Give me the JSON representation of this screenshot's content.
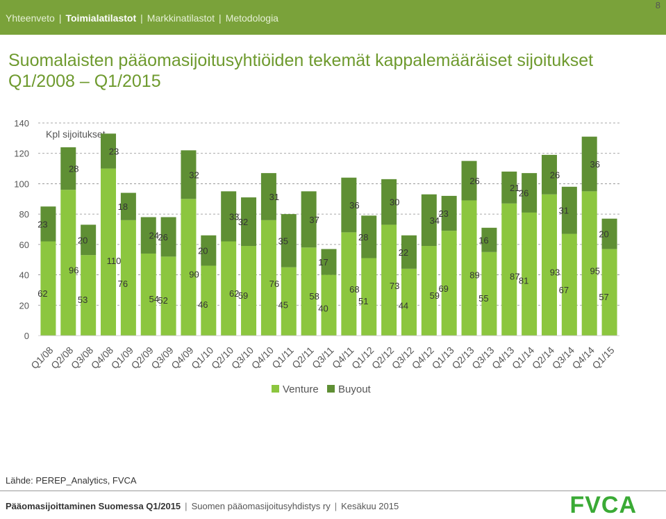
{
  "nav": {
    "items": [
      "Yhteenveto",
      "Toimialatilastot",
      "Markkinatilastot",
      "Metodologia"
    ],
    "active_index": 1
  },
  "page_number": "8",
  "title": "Suomalaisten pääomasijoitusyhtiöiden tekemät kappalemääräiset sijoitukset Q1/2008 – Q1/2015",
  "source": "Lähde: PEREP_Analytics, FVCA",
  "footer": {
    "bold": "Pääomasijoittaminen Suomessa Q1/2015",
    "org": "Suomen pääomasijoitusyhdistys ry",
    "date": "Kesäkuu 2015"
  },
  "logo": "FVCA",
  "colors": {
    "venture": "#8cc63f",
    "buyout": "#5f8f34",
    "topbar": "#7aa23a",
    "title": "#6e9a2e"
  },
  "chart_data": {
    "type": "bar",
    "stacked": true,
    "title": "",
    "ylabel": "Kpl sijoitukset",
    "xlabel": "",
    "ylim": [
      0,
      140
    ],
    "yticks": [
      0,
      20,
      40,
      60,
      80,
      100,
      120,
      140
    ],
    "grid": "dashed-horizontal",
    "legend": "bottom",
    "categories": [
      "Q1/08",
      "Q2/08",
      "Q3/08",
      "Q4/08",
      "Q1/09",
      "Q2/09",
      "Q3/09",
      "Q4/09",
      "Q1/10",
      "Q2/10",
      "Q3/10",
      "Q4/10",
      "Q1/11",
      "Q2/11",
      "Q3/11",
      "Q4/11",
      "Q1/12",
      "Q2/12",
      "Q3/12",
      "Q4/12",
      "Q1/13",
      "Q2/13",
      "Q3/13",
      "Q4/13",
      "Q1/14",
      "Q2/14",
      "Q3/14",
      "Q4/14",
      "Q1/15"
    ],
    "series": [
      {
        "name": "Venture",
        "values": [
          62,
          96,
          53,
          110,
          76,
          54,
          52,
          90,
          46,
          62,
          59,
          76,
          45,
          58,
          40,
          68,
          51,
          73,
          44,
          59,
          69,
          89,
          55,
          87,
          81,
          93,
          67,
          95,
          57
        ]
      },
      {
        "name": "Buyout",
        "values": [
          23,
          28,
          20,
          23,
          18,
          24,
          26,
          32,
          20,
          33,
          32,
          31,
          35,
          37,
          17,
          36,
          28,
          30,
          22,
          34,
          23,
          26,
          16,
          21,
          26,
          26,
          31,
          36,
          20
        ]
      }
    ]
  }
}
